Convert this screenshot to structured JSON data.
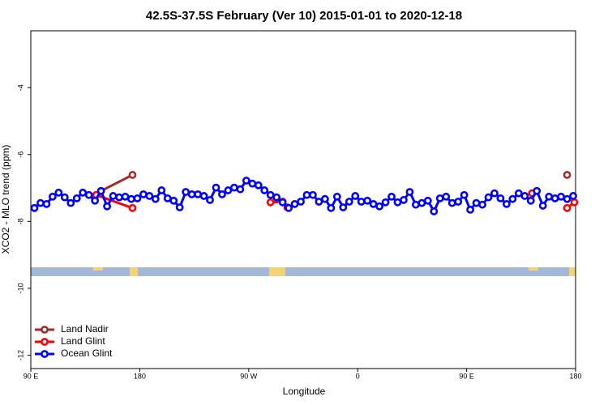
{
  "chart_data": {
    "type": "line",
    "title": "42.5S-37.5S February (Ver 10)   2015-01-01 to 2020-12-18",
    "xlabel": "Longitude",
    "ylabel": "XCO2 - MLO trend (ppm)",
    "xlim": [
      90,
      540
    ],
    "xticks": [
      {
        "value": 90,
        "label": "90 E"
      },
      180,
      {
        "value": 270,
        "label": "90 W"
      },
      {
        "value": 360,
        "label": "0"
      },
      {
        "value": 450,
        "label": "90 E"
      },
      {
        "value": 540,
        "label": "180"
      }
    ],
    "ylim": [
      -12.4,
      -2.3
    ],
    "yticks": [
      -4,
      -6,
      -8,
      -10,
      -12
    ],
    "legend": "lower left",
    "series": [
      {
        "name": "Land Nadir",
        "color": "#a52a2a",
        "x": [
          148,
          174,
          null,
          533
        ],
        "values": [
          -7.09,
          -6.61,
          null,
          -6.61
        ]
      },
      {
        "name": "Land Glint",
        "color": "#ff0000",
        "x": [
          144,
          174,
          null,
          288,
          298,
          302,
          null,
          504,
          null,
          533,
          539
        ],
        "values": [
          -7.21,
          -7.6,
          null,
          -7.43,
          -7.41,
          -7.58,
          null,
          -7.16,
          null,
          -7.6,
          -7.43
        ]
      },
      {
        "name": "Ocean Glint",
        "color": "#0000ff",
        "x": [
          93,
          98,
          103,
          108,
          113,
          118,
          123,
          128,
          133,
          138,
          143,
          148,
          153,
          158,
          163,
          168,
          173,
          178,
          183,
          188,
          193,
          198,
          203,
          208,
          213,
          218,
          223,
          228,
          233,
          238,
          243,
          248,
          253,
          258,
          263,
          268,
          273,
          278,
          283,
          288,
          293,
          298,
          303,
          308,
          313,
          318,
          323,
          328,
          333,
          338,
          343,
          348,
          353,
          358,
          363,
          368,
          373,
          378,
          383,
          388,
          393,
          398,
          403,
          408,
          413,
          418,
          423,
          428,
          433,
          438,
          443,
          448,
          453,
          458,
          463,
          468,
          473,
          478,
          483,
          488,
          493,
          498,
          503,
          508,
          513,
          518,
          523,
          528,
          533,
          538
        ],
        "values": [
          -7.6,
          -7.45,
          -7.48,
          -7.26,
          -7.14,
          -7.28,
          -7.45,
          -7.31,
          -7.14,
          -7.21,
          -7.38,
          -7.09,
          -7.55,
          -7.24,
          -7.28,
          -7.26,
          -7.33,
          -7.31,
          -7.19,
          -7.24,
          -7.33,
          -7.07,
          -7.31,
          -7.38,
          -7.58,
          -7.12,
          -7.19,
          -7.19,
          -7.24,
          -7.36,
          -6.99,
          -7.19,
          -7.07,
          -6.99,
          -7.04,
          -6.78,
          -6.87,
          -6.92,
          -7.07,
          -7.21,
          -7.28,
          -7.43,
          -7.6,
          -7.48,
          -7.41,
          -7.21,
          -7.21,
          -7.41,
          -7.33,
          -7.6,
          -7.26,
          -7.58,
          -7.41,
          -7.24,
          -7.41,
          -7.38,
          -7.48,
          -7.55,
          -7.43,
          -7.26,
          -7.43,
          -7.36,
          -7.12,
          -7.5,
          -7.45,
          -7.38,
          -7.7,
          -7.31,
          -7.26,
          -7.45,
          -7.41,
          -7.21,
          -7.65,
          -7.45,
          -7.5,
          -7.28,
          -7.16,
          -7.31,
          -7.48,
          -7.33,
          -7.16,
          -7.24,
          -7.38,
          -7.09,
          -7.53,
          -7.26,
          -7.31,
          -7.26,
          -7.33,
          -7.24
        ]
      }
    ]
  }
}
